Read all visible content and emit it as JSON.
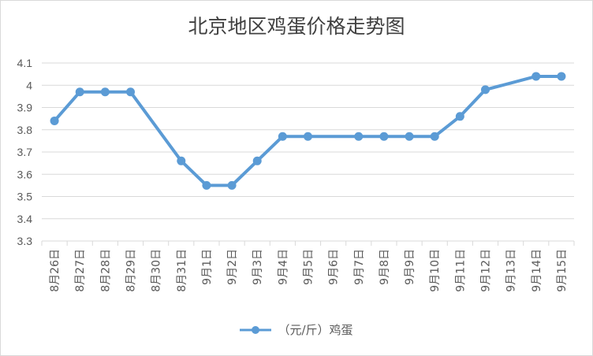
{
  "chart_data": {
    "type": "line",
    "title": "北京地区鸡蛋价格走势图",
    "x": [
      "8月26日",
      "8月27日",
      "8月28日",
      "8月29日",
      "8月30日",
      "8月31日",
      "9月1日",
      "9月2日",
      "9月3日",
      "9月4日",
      "9月5日",
      "9月6日",
      "9月7日",
      "9月8日",
      "9月9日",
      "9月10日",
      "9月11日",
      "9月12日",
      "9月13日",
      "9月14日",
      "9月15日"
    ],
    "series": [
      {
        "name": "（元/斤）鸡蛋",
        "color": "#5b9bd5",
        "values": [
          3.84,
          3.97,
          3.97,
          3.97,
          null,
          3.66,
          3.55,
          3.55,
          3.66,
          3.77,
          3.77,
          null,
          3.77,
          3.77,
          3.77,
          3.77,
          3.86,
          3.98,
          null,
          4.04,
          4.04
        ]
      }
    ],
    "ylim": [
      3.3,
      4.1
    ],
    "yticks": [
      "3.3",
      "3.4",
      "3.5",
      "3.6",
      "3.7",
      "3.8",
      "3.9",
      "4",
      "4.1"
    ],
    "grid": true,
    "legend": "bottom"
  }
}
